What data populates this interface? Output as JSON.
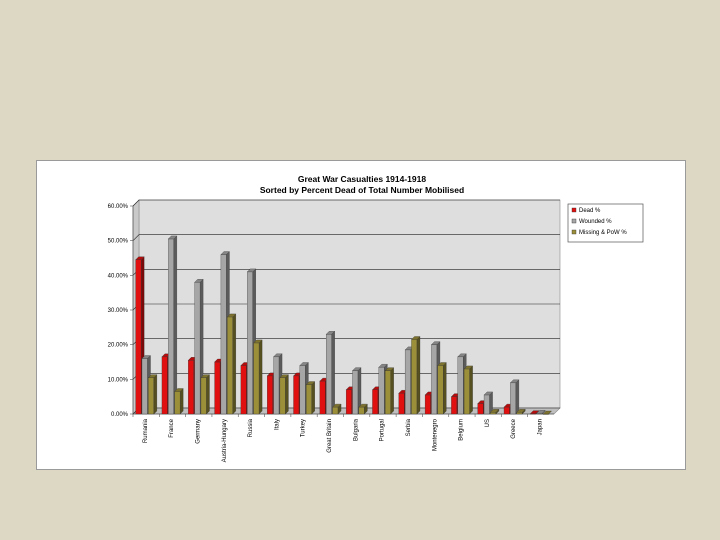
{
  "chart_data": {
    "type": "bar",
    "title": "Great War Casualties 1914-1918",
    "subtitle": "Sorted by Percent Dead of Total Number Mobilised",
    "categories": [
      "Rumania",
      "France",
      "Germany",
      "Austria-Hungary",
      "Russia",
      "Italy",
      "Turkey",
      "Great Britain",
      "Bulgaria",
      "Portugal",
      "Serbia",
      "Montenegro",
      "Belgium",
      "US",
      "Greece",
      "Japan"
    ],
    "series": [
      {
        "name": "Dead %",
        "color": "#e01010",
        "values": [
          44.5,
          16.5,
          15.5,
          15.0,
          14.0,
          11.0,
          11.0,
          9.5,
          7.0,
          7.0,
          6.0,
          5.5,
          5.0,
          3.0,
          2.0,
          0.1
        ]
      },
      {
        "name": "Wounded %",
        "color": "#a6a6a6",
        "values": [
          16.0,
          50.5,
          38.0,
          46.0,
          41.0,
          16.5,
          14.0,
          23.0,
          12.5,
          13.5,
          18.5,
          20.0,
          16.5,
          5.5,
          9.0,
          0.2
        ]
      },
      {
        "name": "Missing & PoW %",
        "color": "#9c8f3a",
        "values": [
          10.5,
          6.5,
          10.5,
          28.0,
          20.5,
          10.5,
          8.5,
          2.0,
          2.0,
          12.5,
          21.5,
          14.0,
          13.0,
          0.5,
          0.5,
          0.0
        ]
      }
    ],
    "ylim": [
      0,
      60
    ],
    "yticks": [
      "0.00%",
      "10.00%",
      "20.00%",
      "30.00%",
      "40.00%",
      "50.00%",
      "60.00%"
    ],
    "grid": true,
    "legend_position": "right"
  }
}
